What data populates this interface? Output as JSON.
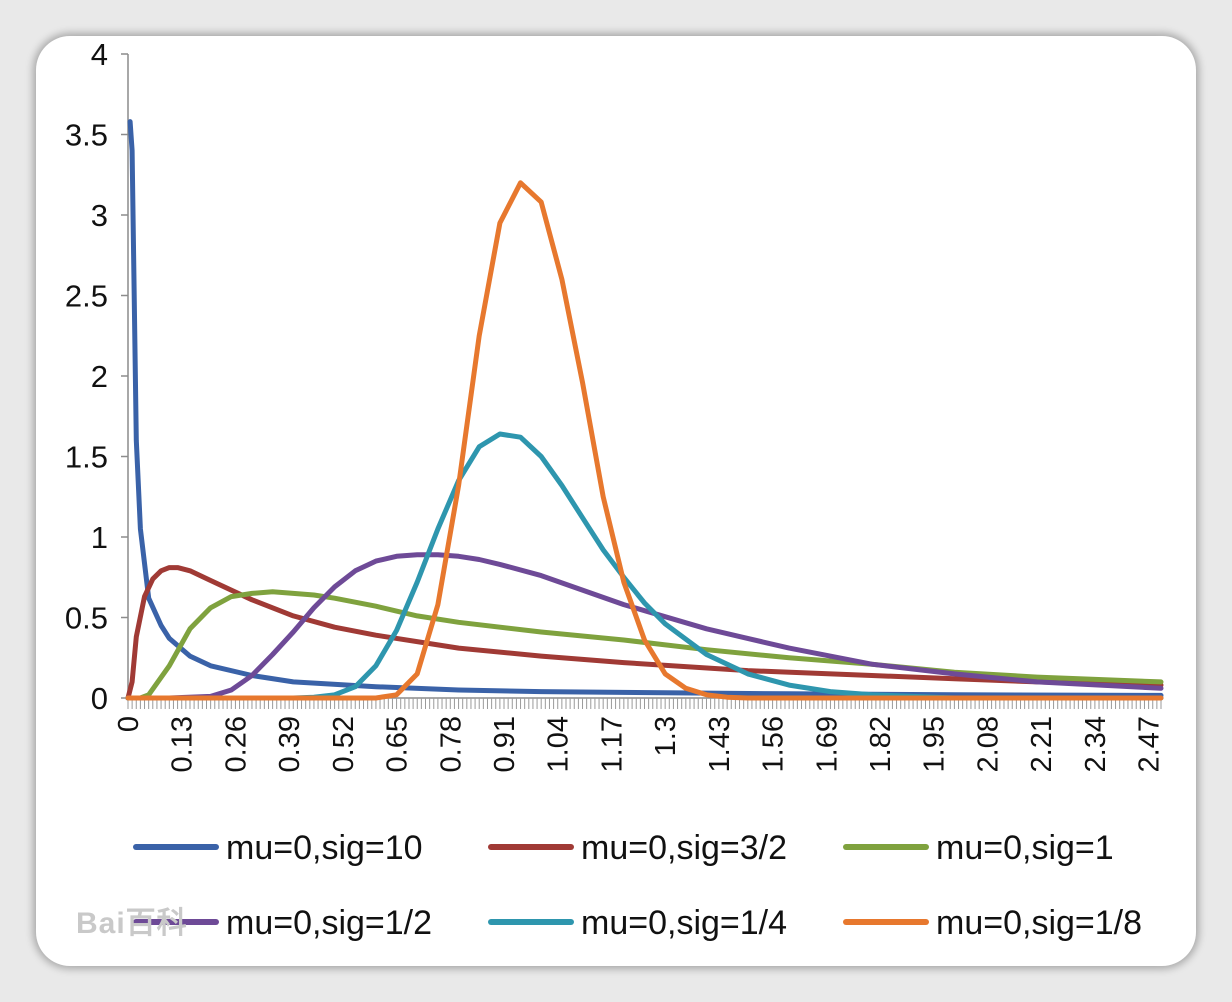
{
  "chart_data": {
    "type": "line",
    "title": "",
    "xlabel": "",
    "ylabel": "",
    "xlim": [
      0,
      2.5
    ],
    "ylim": [
      0,
      4
    ],
    "y_ticks": [
      "0",
      "0.5",
      "1",
      "1.5",
      "2",
      "2.5",
      "3",
      "3.5",
      "4"
    ],
    "x_ticks": [
      "0",
      "0.13",
      "0.26",
      "0.39",
      "0.52",
      "0.65",
      "0.78",
      "0.91",
      "1.04",
      "1.17",
      "1.3",
      "1.43",
      "1.56",
      "1.69",
      "1.82",
      "1.95",
      "2.08",
      "2.21",
      "2.34",
      "2.47"
    ],
    "legend_position": "bottom",
    "grid": false,
    "series": [
      {
        "name": "mu=0,sig=10",
        "color": "#3a62a8",
        "x": [
          0.005,
          0.01,
          0.02,
          0.03,
          0.05,
          0.08,
          0.1,
          0.15,
          0.2,
          0.3,
          0.4,
          0.6,
          0.8,
          1.0,
          1.3,
          1.6,
          2.0,
          2.5
        ],
        "y": [
          3.58,
          3.4,
          1.6,
          1.05,
          0.62,
          0.45,
          0.37,
          0.26,
          0.2,
          0.14,
          0.1,
          0.07,
          0.05,
          0.04,
          0.032,
          0.026,
          0.02,
          0.016
        ]
      },
      {
        "name": "mu=0,sig=3/2",
        "color": "#a03a35",
        "x": [
          0.0,
          0.01,
          0.02,
          0.04,
          0.06,
          0.08,
          0.1,
          0.12,
          0.15,
          0.2,
          0.3,
          0.4,
          0.5,
          0.6,
          0.8,
          1.0,
          1.2,
          1.5,
          1.8,
          2.0,
          2.2,
          2.5
        ],
        "y": [
          0.0,
          0.1,
          0.38,
          0.63,
          0.74,
          0.79,
          0.81,
          0.81,
          0.79,
          0.73,
          0.61,
          0.51,
          0.44,
          0.39,
          0.31,
          0.26,
          0.22,
          0.17,
          0.14,
          0.12,
          0.1,
          0.08
        ]
      },
      {
        "name": "mu=0,sig=1",
        "color": "#7fa23e",
        "x": [
          0.0,
          0.03,
          0.05,
          0.1,
          0.15,
          0.2,
          0.25,
          0.3,
          0.35,
          0.4,
          0.45,
          0.5,
          0.6,
          0.7,
          0.8,
          1.0,
          1.2,
          1.4,
          1.6,
          1.8,
          2.0,
          2.2,
          2.5
        ],
        "y": [
          0.0,
          0.0,
          0.02,
          0.2,
          0.43,
          0.56,
          0.63,
          0.65,
          0.66,
          0.65,
          0.64,
          0.62,
          0.57,
          0.51,
          0.47,
          0.41,
          0.36,
          0.3,
          0.25,
          0.21,
          0.16,
          0.13,
          0.1
        ]
      },
      {
        "name": "mu=0,sig=1/2",
        "color": "#6e4a97",
        "x": [
          0.0,
          0.1,
          0.2,
          0.25,
          0.3,
          0.35,
          0.4,
          0.45,
          0.5,
          0.55,
          0.6,
          0.65,
          0.7,
          0.75,
          0.8,
          0.85,
          0.9,
          1.0,
          1.1,
          1.2,
          1.4,
          1.6,
          1.8,
          2.0,
          2.2,
          2.5
        ],
        "y": [
          0.0,
          0.0,
          0.01,
          0.05,
          0.14,
          0.27,
          0.41,
          0.56,
          0.69,
          0.79,
          0.85,
          0.88,
          0.89,
          0.89,
          0.88,
          0.86,
          0.83,
          0.76,
          0.67,
          0.58,
          0.43,
          0.31,
          0.21,
          0.15,
          0.1,
          0.06
        ]
      },
      {
        "name": "mu=0,sig=1/4",
        "color": "#2e96ae",
        "x": [
          0.0,
          0.4,
          0.45,
          0.5,
          0.55,
          0.6,
          0.65,
          0.7,
          0.75,
          0.8,
          0.85,
          0.9,
          0.95,
          1.0,
          1.05,
          1.1,
          1.15,
          1.2,
          1.25,
          1.3,
          1.4,
          1.5,
          1.6,
          1.7,
          1.8,
          1.9,
          2.0,
          2.5
        ],
        "y": [
          0.0,
          0.0,
          0.005,
          0.02,
          0.07,
          0.2,
          0.42,
          0.72,
          1.05,
          1.35,
          1.56,
          1.64,
          1.62,
          1.5,
          1.32,
          1.12,
          0.92,
          0.75,
          0.59,
          0.46,
          0.27,
          0.15,
          0.08,
          0.04,
          0.02,
          0.01,
          0.0,
          0.0
        ]
      },
      {
        "name": "mu=0,sig=1/8",
        "color": "#e7782e",
        "x": [
          0.0,
          0.6,
          0.65,
          0.7,
          0.75,
          0.8,
          0.85,
          0.9,
          0.95,
          1.0,
          1.05,
          1.1,
          1.15,
          1.2,
          1.25,
          1.3,
          1.35,
          1.4,
          1.45,
          1.5,
          2.5
        ],
        "y": [
          0.0,
          0.0,
          0.02,
          0.15,
          0.58,
          1.32,
          2.25,
          2.95,
          3.2,
          3.08,
          2.6,
          1.96,
          1.25,
          0.72,
          0.36,
          0.15,
          0.06,
          0.02,
          0.005,
          0.0,
          0.0
        ]
      }
    ]
  }
}
